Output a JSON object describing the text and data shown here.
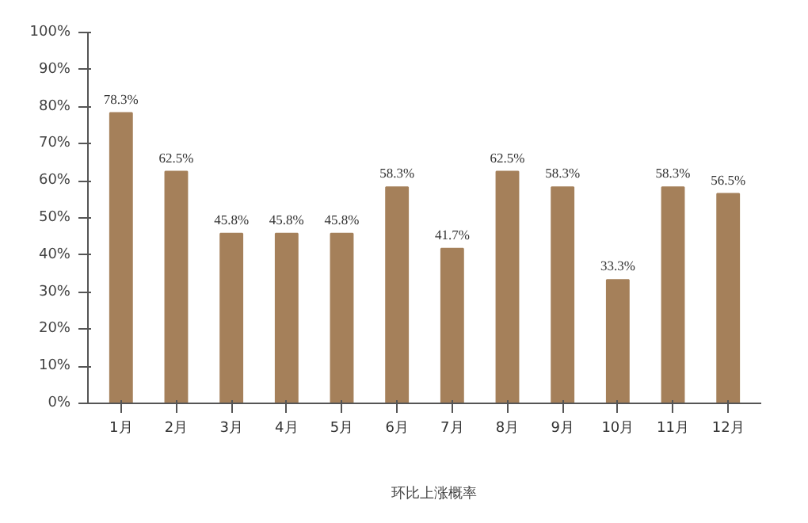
{
  "chart_data": {
    "type": "bar",
    "categories": [
      "1月",
      "2月",
      "3月",
      "4月",
      "5月",
      "6月",
      "7月",
      "8月",
      "9月",
      "10月",
      "11月",
      "12月"
    ],
    "series": [
      {
        "name": "环比上涨概率",
        "color": "#a5805a",
        "values": [
          78.3,
          62.5,
          45.8,
          45.8,
          45.8,
          58.3,
          41.7,
          62.5,
          58.3,
          33.3,
          58.3,
          56.5
        ],
        "value_labels": [
          "78.3%",
          "62.5%",
          "45.8%",
          "45.8%",
          "45.8%",
          "58.3%",
          "41.7%",
          "62.5%",
          "58.3%",
          "33.3%",
          "58.3%",
          "56.5%"
        ]
      }
    ],
    "ylim": [
      0,
      100
    ],
    "yticks": [
      {
        "value": 0,
        "label": "0%"
      },
      {
        "value": 10,
        "label": "10%"
      },
      {
        "value": 20,
        "label": "20%"
      },
      {
        "value": 30,
        "label": "30%"
      },
      {
        "value": 40,
        "label": "40%"
      },
      {
        "value": 50,
        "label": "50%"
      },
      {
        "value": 60,
        "label": "60%"
      },
      {
        "value": 70,
        "label": "70%"
      },
      {
        "value": 80,
        "label": "80%"
      },
      {
        "value": 90,
        "label": "90%"
      },
      {
        "value": 100,
        "label": "100%"
      }
    ],
    "grid": false,
    "legend": "bottom"
  }
}
